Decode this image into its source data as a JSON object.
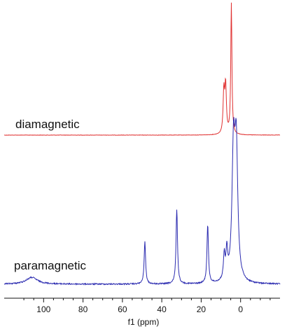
{
  "chart_data": {
    "type": "line",
    "xlabel": "f1 (ppm)",
    "xlim": [
      120,
      -20
    ],
    "x_reversed": true,
    "ticks": [
      100,
      80,
      60,
      40,
      20,
      0
    ],
    "series": [
      {
        "name": "diamagnetic",
        "color": "#e03030",
        "peaks": [
          {
            "ppm": 8.5,
            "height": 0.32,
            "width": 0.45
          },
          {
            "ppm": 7.6,
            "height": 0.36,
            "width": 0.45
          },
          {
            "ppm": 4.7,
            "height": 1.0,
            "width": 0.35
          }
        ]
      },
      {
        "name": "paramagnetic",
        "color": "#2b2bb0",
        "peaks": [
          {
            "ppm": 106,
            "height": 0.05,
            "width": 3.5
          },
          {
            "ppm": 48.6,
            "height": 0.31,
            "width": 0.45
          },
          {
            "ppm": 32.4,
            "height": 0.55,
            "width": 0.45
          },
          {
            "ppm": 16.7,
            "height": 0.43,
            "width": 0.45
          },
          {
            "ppm": 8.3,
            "height": 0.18,
            "width": 0.5
          },
          {
            "ppm": 7.0,
            "height": 0.2,
            "width": 0.5
          },
          {
            "ppm": 3.6,
            "height": 0.93,
            "width": 0.9
          },
          {
            "ppm": 2.2,
            "height": 0.93,
            "width": 0.9
          }
        ]
      }
    ]
  }
}
